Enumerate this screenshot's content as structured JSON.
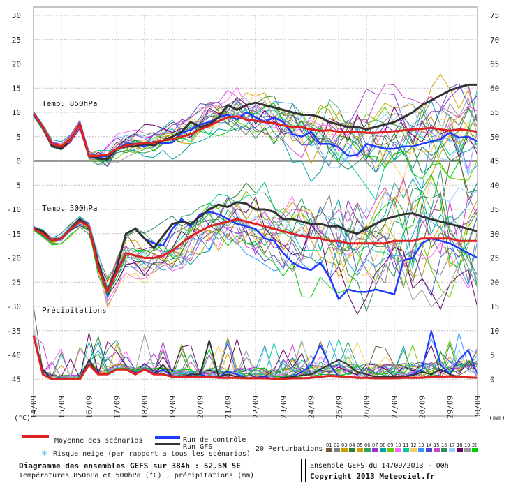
{
  "chart_data": {
    "type": "line",
    "left_axis_ticks": [
      "30",
      "25",
      "20",
      "15",
      "10",
      "5",
      "0",
      "-5",
      "-10",
      "-15",
      "-20",
      "-25",
      "-30",
      "-35",
      "-40",
      "-45"
    ],
    "right_axis_ticks": [
      "75",
      "70",
      "65",
      "60",
      "55",
      "50",
      "45",
      "40",
      "35",
      "30",
      "25",
      "20",
      "15",
      "10",
      "5",
      "0"
    ],
    "left_unit": "(°C)",
    "right_unit": "(mm)",
    "x_labels": [
      "14/09",
      "15/09",
      "16/09",
      "17/09",
      "18/09",
      "19/09",
      "20/09",
      "21/09",
      "22/09",
      "23/09",
      "24/09",
      "25/09",
      "26/09",
      "27/09",
      "28/09",
      "29/09",
      "30/09"
    ],
    "panels": [
      {
        "label": "Temp. 850hPa"
      },
      {
        "label": "Temp. 500hPa"
      },
      {
        "label": "Précipitations"
      }
    ],
    "series_t850": {
      "mean": [
        9.8,
        7,
        3.5,
        3,
        4.5,
        7.5,
        1,
        1,
        1.2,
        2.5,
        3.2,
        3.5,
        3.6,
        3.8,
        4.2,
        4.5,
        5,
        5.5,
        6.5,
        7.2,
        8.2,
        9,
        9.2,
        8.5,
        8.3,
        8,
        7.8,
        7.3,
        7,
        6.9,
        6.5,
        6.2,
        6.3,
        6,
        6,
        6,
        5.8,
        5.8,
        6,
        6.1,
        6.3,
        6.5,
        6.6,
        6.8,
        6.5,
        6.2,
        6.5,
        6.3,
        6
      ],
      "control": [
        9.5,
        7,
        3,
        2.8,
        4.5,
        7.5,
        1,
        0.8,
        1,
        2.5,
        3.5,
        3.5,
        3,
        4,
        3.6,
        3.8,
        5.8,
        6.4,
        7.5,
        8,
        9,
        9.5,
        8.5,
        10,
        9,
        8,
        9,
        8,
        5.5,
        5,
        6,
        3.5,
        3.5,
        2.8,
        1,
        1.2,
        3.5,
        3,
        2.5,
        2.5,
        3,
        3,
        3.5,
        4,
        4.5,
        5.8,
        4.8,
        5,
        4
      ],
      "gfs": [
        9.8,
        7,
        3,
        2.5,
        4.5,
        7.5,
        1,
        0.5,
        0.3,
        2.5,
        3,
        3,
        3.5,
        3.2,
        4.2,
        5,
        6,
        8,
        7,
        7.5,
        9,
        11.5,
        10.5,
        11.5,
        12,
        11.5,
        11,
        10.5,
        10,
        9.5,
        9.5,
        9,
        8,
        7.5,
        7,
        7,
        6.5,
        7,
        7.5,
        8,
        9,
        10,
        11.5,
        12.5,
        13.5,
        14.5,
        15.2,
        15.7,
        15.7
      ]
    },
    "series_t500": {
      "mean": [
        -14,
        -15,
        -16.5,
        -16,
        -14,
        -12.5,
        -13.5,
        -22,
        -27,
        -23,
        -19,
        -19.5,
        -20,
        -20,
        -19.5,
        -18.5,
        -17,
        -15.5,
        -14.5,
        -13.5,
        -13,
        -12.5,
        -12,
        -12.5,
        -13,
        -13.5,
        -14,
        -14.5,
        -15,
        -15.5,
        -15.8,
        -16,
        -16.5,
        -16.5,
        -17,
        -17,
        -17,
        -17,
        -17,
        -16.5,
        -16.5,
        -16.5,
        -16,
        -16,
        -16,
        -16,
        -16.5,
        -16.5,
        -16.5
      ],
      "control": [
        -14,
        -14.5,
        -16.5,
        -16,
        -14,
        -12,
        -13.5,
        -21,
        -27,
        -22,
        -15,
        -14,
        -16,
        -17,
        -17.5,
        -14,
        -12,
        -13.5,
        -11,
        -10.5,
        -11,
        -12,
        -13,
        -13.5,
        -14,
        -16,
        -16.5,
        -19,
        -21,
        -22,
        -22.5,
        -21,
        -24,
        -28.5,
        -26.5,
        -27,
        -27,
        -26.5,
        -27,
        -27.5,
        -20.5,
        -20,
        -17,
        -16,
        -16.5,
        -17,
        -18,
        -19,
        -20
      ],
      "gfs": [
        -14,
        -14.5,
        -16.5,
        -16,
        -14,
        -12,
        -13.5,
        -21,
        -27,
        -22,
        -15,
        -14,
        -16,
        -18,
        -15.5,
        -13,
        -12.5,
        -13,
        -11.5,
        -10,
        -9,
        -9.5,
        -8.5,
        -8.8,
        -10,
        -10,
        -10.5,
        -12,
        -12,
        -12.5,
        -13,
        -13,
        -13.5,
        -13.5,
        -14.5,
        -15,
        -14,
        -13,
        -12,
        -11.5,
        -11,
        -10.8,
        -11.5,
        -12,
        -12.5,
        -13,
        -13.5,
        -14,
        -14.5
      ]
    },
    "series_precip": {
      "mean": [
        9,
        1,
        0,
        0,
        0,
        0,
        3,
        1,
        1,
        2,
        2,
        1,
        2,
        1,
        1,
        0.5,
        0.5,
        0.5,
        0.5,
        0.5,
        0.3,
        0.3,
        0.3,
        0.2,
        0.2,
        0.2,
        0.1,
        0.1,
        0.2,
        0.2,
        0.3,
        0.5,
        0.7,
        0.6,
        0.5,
        0.3,
        0.3,
        0.2,
        0.2,
        0.2,
        0.3,
        0.3,
        0.3,
        0.5,
        0.5,
        0.6,
        0.5,
        0.4,
        0.3
      ],
      "control": [
        9,
        2,
        0,
        0,
        0,
        0,
        4,
        1,
        1,
        2,
        2,
        1,
        2,
        1,
        2,
        0.5,
        0.5,
        1,
        1,
        0.5,
        0.5,
        1.5,
        1,
        0.3,
        0.2,
        0.5,
        0.1,
        0.3,
        0.5,
        1.5,
        3,
        7,
        3,
        0.5,
        0.5,
        0.3,
        0.3,
        0.3,
        0.5,
        0.5,
        0.5,
        1,
        2,
        10,
        3,
        1,
        4,
        6,
        1
      ],
      "gfs": [
        9,
        2,
        0,
        0,
        0,
        0,
        4,
        1,
        1,
        2,
        2,
        1,
        2,
        1,
        3,
        0.5,
        0.5,
        1,
        1,
        8,
        0.5,
        1,
        0.5,
        0.3,
        0.2,
        0.3,
        0.1,
        0.3,
        0.5,
        0.8,
        1,
        2,
        3,
        4,
        3,
        1.5,
        1,
        0.5,
        0.5,
        0.5,
        0.5,
        0.8,
        1.5,
        1,
        2,
        1,
        0.5,
        0.3,
        0.3
      ]
    },
    "ensemble_colors": [
      "#6a5a3a",
      "#808080",
      "#c8a000",
      "#2f7f2f",
      "#d0a000",
      "#30a060",
      "#9933cc",
      "#00a0a0",
      "#66cc00",
      "#ff66ff",
      "#00cc99",
      "#ffcc66",
      "#3399ff",
      "#4c4ccc",
      "#cc44cc",
      "#2e8b57",
      "#99ccff",
      "#660066",
      "#999999",
      "#00cc00"
    ],
    "legend": {
      "mean": "Moyenne des scénarios",
      "control": "Run de contrôle",
      "gfs": "Run GFS",
      "snow": "Risque neige (par rapport a tous les scénarios)",
      "perturbations": "20 Perturbations",
      "pert_ids": [
        "01",
        "02",
        "03",
        "04",
        "05",
        "06",
        "07",
        "08",
        "09",
        "10",
        "11",
        "12",
        "13",
        "14",
        "15",
        "16",
        "17",
        "18",
        "19",
        "20"
      ],
      "colors": {
        "mean": "#dd2222",
        "control": "#1e3cff",
        "gfs": "#333333",
        "snow": "#66bbee"
      }
    }
  },
  "footer": {
    "title": "Diagramme des ensembles GEFS sur 384h : 52.5N 5E",
    "subtitle": "Températures 850hPa et 500hPa (°C) , précipitations (mm)",
    "run_info": "Ensemble GEFS du 14/09/2013 - 00h",
    "copyright": "Copyright 2013 Meteociel.fr"
  }
}
